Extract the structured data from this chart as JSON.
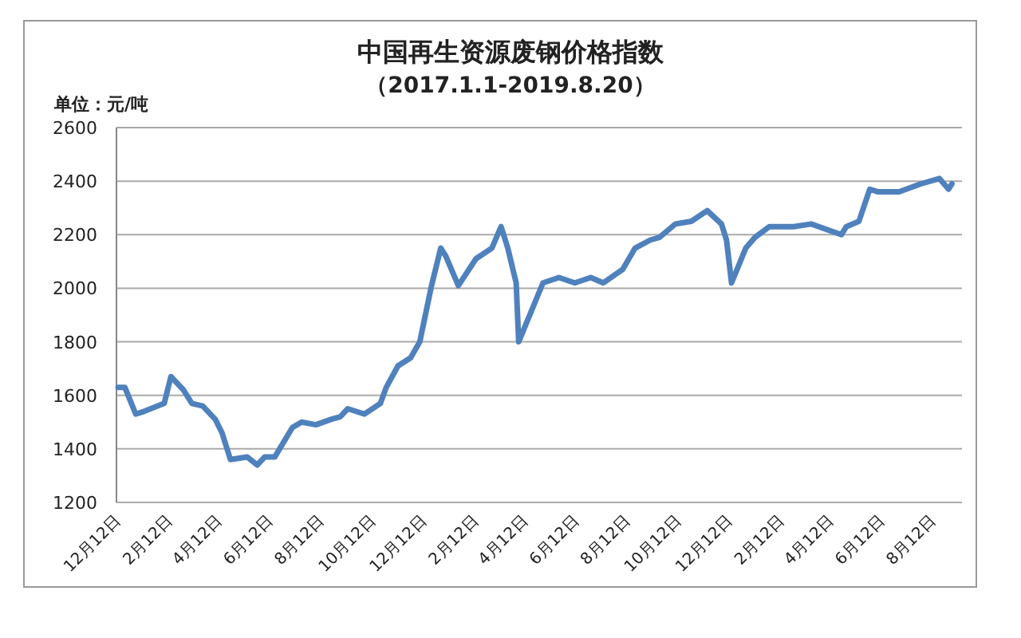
{
  "chart_data": {
    "type": "line",
    "title": "中国再生资源废钢价格指数",
    "subtitle": "（2017.1.1-2019.8.20）",
    "ylabel": "单位：元/吨",
    "xlim": [
      "2016-12-06",
      "2019-09-11"
    ],
    "ylim": [
      1200,
      2600
    ],
    "yticks": [
      1200,
      1400,
      1600,
      1800,
      2000,
      2200,
      2400,
      2600
    ],
    "xticks": [
      {
        "value": "2016-12-12",
        "label": "12月12日"
      },
      {
        "value": "2017-02-12",
        "label": "2月12日"
      },
      {
        "value": "2017-04-12",
        "label": "4月12日"
      },
      {
        "value": "2017-06-12",
        "label": "6月12日"
      },
      {
        "value": "2017-08-12",
        "label": "8月12日"
      },
      {
        "value": "2017-10-12",
        "label": "10月12日"
      },
      {
        "value": "2017-12-12",
        "label": "12月12日"
      },
      {
        "value": "2018-02-12",
        "label": "2月12日"
      },
      {
        "value": "2018-04-12",
        "label": "4月12日"
      },
      {
        "value": "2018-06-12",
        "label": "6月12日"
      },
      {
        "value": "2018-08-12",
        "label": "8月12日"
      },
      {
        "value": "2018-10-12",
        "label": "10月12日"
      },
      {
        "value": "2018-12-12",
        "label": "12月12日"
      },
      {
        "value": "2019-02-12",
        "label": "2月12日"
      },
      {
        "value": "2019-04-12",
        "label": "4月12日"
      },
      {
        "value": "2019-06-12",
        "label": "6月12日"
      },
      {
        "value": "2019-08-12",
        "label": "8月12日"
      }
    ],
    "grid": "y",
    "marker": "none",
    "line_style": "solid",
    "x": [
      "2016-12-08",
      "2016-12-16",
      "2016-12-29",
      "2017-01-08",
      "2017-02-01",
      "2017-02-09",
      "2017-02-24",
      "2017-03-06",
      "2017-03-19",
      "2017-04-03",
      "2017-04-11",
      "2017-04-21",
      "2017-05-11",
      "2017-05-23",
      "2017-06-01",
      "2017-06-13",
      "2017-07-04",
      "2017-07-15",
      "2017-08-01",
      "2017-08-19",
      "2017-08-30",
      "2017-09-08",
      "2017-09-28",
      "2017-10-17",
      "2017-10-24",
      "2017-11-07",
      "2017-11-22",
      "2017-12-03",
      "2017-12-17",
      "2017-12-28",
      "2018-01-03",
      "2018-01-18",
      "2018-02-08",
      "2018-02-27",
      "2018-03-10",
      "2018-03-18",
      "2018-03-28",
      "2018-03-31",
      "2018-04-29",
      "2018-05-18",
      "2018-06-06",
      "2018-06-25",
      "2018-07-10",
      "2018-08-02",
      "2018-08-17",
      "2018-09-04",
      "2018-09-15",
      "2018-10-04",
      "2018-10-23",
      "2018-11-11",
      "2018-11-28",
      "2018-12-04",
      "2018-12-10",
      "2018-12-27",
      "2019-01-07",
      "2019-01-24",
      "2019-02-22",
      "2019-03-15",
      "2019-04-20",
      "2019-04-26",
      "2019-05-11",
      "2019-05-24",
      "2019-06-03",
      "2019-06-28",
      "2019-07-24",
      "2019-08-15",
      "2019-08-26",
      "2019-08-30"
    ],
    "series": [
      {
        "color": "#4f81bd",
        "values": [
          1630,
          1630,
          1530,
          1540,
          1570,
          1670,
          1620,
          1570,
          1560,
          1510,
          1460,
          1360,
          1370,
          1340,
          1370,
          1370,
          1480,
          1500,
          1490,
          1510,
          1520,
          1550,
          1530,
          1570,
          1630,
          1710,
          1740,
          1800,
          2010,
          2150,
          2120,
          2010,
          2110,
          2150,
          2230,
          2150,
          2020,
          1800,
          2020,
          2040,
          2020,
          2040,
          2020,
          2070,
          2150,
          2180,
          2190,
          2240,
          2250,
          2290,
          2240,
          2180,
          2020,
          2150,
          2190,
          2230,
          2230,
          2240,
          2200,
          2230,
          2250,
          2370,
          2360,
          2360,
          2390,
          2410,
          2370,
          2390
        ]
      }
    ]
  }
}
